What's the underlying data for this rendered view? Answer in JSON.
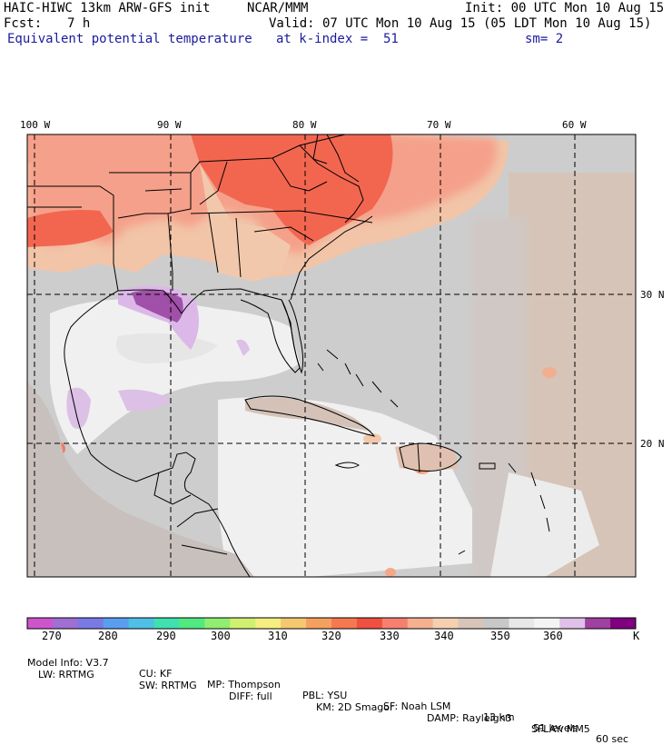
{
  "header": {
    "model": "HAIC-HIWC 13km ARW-GFS init",
    "org": "NCAR/MMM",
    "init": "Init: 00 UTC Mon 10 Aug 15",
    "fcst_label": "Fcst:",
    "fcst_value": "7 h",
    "valid": "Valid: 07 UTC Mon 10 Aug 15 (05 LDT Mon 10 Aug 15)",
    "field": "Equivalent potential temperature",
    "level": "at k-index =  51",
    "smoothing": "sm= 2"
  },
  "map": {
    "lon_labels": [
      "100 W",
      "90 W",
      "80 W",
      "70 W",
      "60 W"
    ],
    "lat_labels": [
      "30 N",
      "20 N"
    ]
  },
  "colorbar": {
    "colors": [
      "#cc55cc",
      "#9f6fd3",
      "#7a7ae6",
      "#5a9ef0",
      "#4ec0e6",
      "#40e0b0",
      "#50ea80",
      "#90ee70",
      "#d0f070",
      "#f5ee80",
      "#f5c870",
      "#f5a060",
      "#f57850",
      "#f05040",
      "#f58070",
      "#f5b090",
      "#f5d0b0",
      "#d8c4b8",
      "#c8c8c8",
      "#e8e8e8",
      "#f4f4f4",
      "#e0c0e8",
      "#a040a0",
      "#800080"
    ],
    "labels": [
      "270",
      "280",
      "290",
      "300",
      "310",
      "320",
      "330",
      "340",
      "350",
      "360"
    ],
    "unit": "K"
  },
  "footer": {
    "line1": [
      "Model Info: V3.7",
      "CU: KF",
      "MP: Thompson",
      "PBL: YSU",
      "SF: Noah LSM",
      "13 km",
      "51 levels",
      "60 sec"
    ],
    "line2": [
      "LW: RRTMG",
      "SW: RRTMG",
      "DIFF: full",
      "KM: 2D Smagor",
      "DAMP: Rayleigh3",
      "SFLAY: MM5"
    ]
  }
}
